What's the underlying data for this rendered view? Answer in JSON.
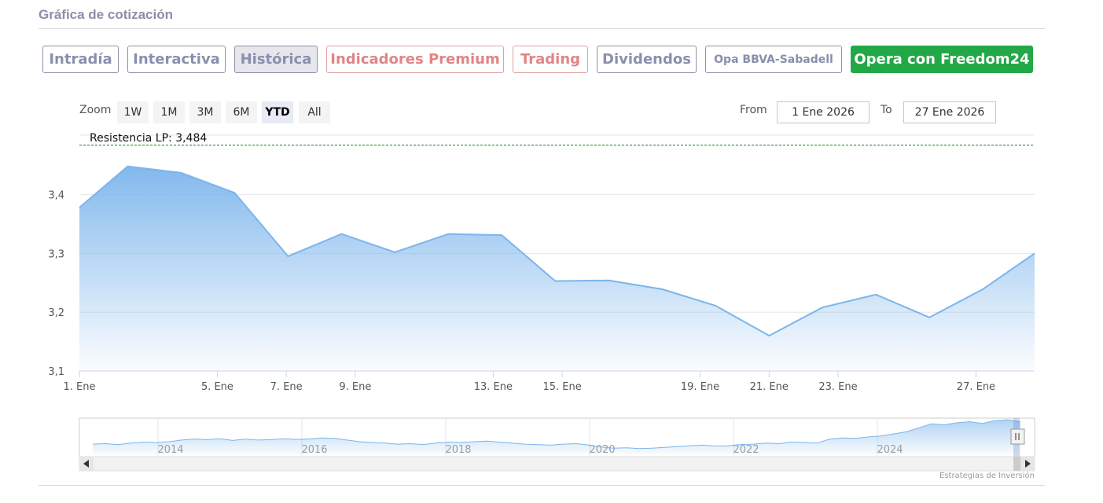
{
  "header": {
    "title": "Gráfica de cotización"
  },
  "tabs": [
    {
      "label": "Intradía",
      "style": "normal"
    },
    {
      "label": "Interactiva",
      "style": "normal"
    },
    {
      "label": "Histórica",
      "style": "active"
    },
    {
      "label": "Indicadores Premium",
      "style": "red"
    },
    {
      "label": "Trading",
      "style": "red"
    },
    {
      "label": "Dividendos",
      "style": "normal"
    },
    {
      "label": "Opa BBVA-Sabadell",
      "style": "small"
    },
    {
      "label": "Opera con Freedom24",
      "style": "green"
    }
  ],
  "zoom": {
    "label": "Zoom",
    "buttons": [
      "1W",
      "1M",
      "3M",
      "6M",
      "YTD",
      "All"
    ],
    "selected": "YTD"
  },
  "range": {
    "from_label": "From",
    "from_value": "1 Ene 2026",
    "to_label": "To",
    "to_value": "27 Ene 2026"
  },
  "credit": "Estrategias de Inversión",
  "colors": {
    "series_line": "#7cb5ec",
    "resistance_line": "#1a7a1a",
    "accent_green": "#22a846",
    "tab_text": "#8a8fae",
    "tab_red": "#e08585"
  },
  "chart_data": {
    "type": "area",
    "ylim": [
      3.1,
      3.5
    ],
    "yticks": [
      "3,1",
      "3,2",
      "3,3",
      "3,4"
    ],
    "ytick_values": [
      3.1,
      3.2,
      3.3,
      3.4
    ],
    "xlim": [
      0,
      27.7
    ],
    "xticks": [
      {
        "label": "1. Ene",
        "day": 0
      },
      {
        "label": "5. Ene",
        "day": 4
      },
      {
        "label": "7. Ene",
        "day": 6
      },
      {
        "label": "9. Ene",
        "day": 8
      },
      {
        "label": "13. Ene",
        "day": 12
      },
      {
        "label": "15. Ene",
        "day": 14
      },
      {
        "label": "19. Ene",
        "day": 18
      },
      {
        "label": "21. Ene",
        "day": 20
      },
      {
        "label": "23. Ene",
        "day": 22
      },
      {
        "label": "27. Ene",
        "day": 26
      }
    ],
    "series": [
      {
        "points": [
          [
            0,
            3.378
          ],
          [
            1.4,
            3.448
          ],
          [
            2.95,
            3.437
          ],
          [
            4.5,
            3.403
          ],
          [
            6.05,
            3.295
          ],
          [
            7.6,
            3.333
          ],
          [
            9.15,
            3.302
          ],
          [
            10.7,
            3.333
          ],
          [
            12.25,
            3.331
          ],
          [
            13.8,
            3.253
          ],
          [
            15.35,
            3.254
          ],
          [
            16.9,
            3.239
          ],
          [
            18.45,
            3.211
          ],
          [
            20.0,
            3.16
          ],
          [
            21.55,
            3.208
          ],
          [
            23.1,
            3.23
          ],
          [
            24.65,
            3.191
          ],
          [
            26.2,
            3.239
          ],
          [
            27.7,
            3.3
          ]
        ]
      }
    ],
    "resistance": {
      "label": "Resistencia LP: 3,484",
      "value": 3.484
    },
    "navigator": {
      "xticks": [
        "2014",
        "2016",
        "2018",
        "2020",
        "2022",
        "2024"
      ],
      "values": [
        0.5,
        0.52,
        0.47,
        0.55,
        0.6,
        0.58,
        0.62,
        0.7,
        0.75,
        0.72,
        0.77,
        0.68,
        0.74,
        0.7,
        0.72,
        0.76,
        0.73,
        0.75,
        0.8,
        0.78,
        0.7,
        0.62,
        0.58,
        0.55,
        0.5,
        0.52,
        0.48,
        0.55,
        0.6,
        0.58,
        0.62,
        0.65,
        0.6,
        0.55,
        0.5,
        0.48,
        0.45,
        0.5,
        0.52,
        0.46,
        0.35,
        0.3,
        0.32,
        0.28,
        0.3,
        0.34,
        0.38,
        0.42,
        0.45,
        0.4,
        0.42,
        0.48,
        0.5,
        0.55,
        0.52,
        0.6,
        0.58,
        0.55,
        0.75,
        0.8,
        0.78,
        0.85,
        0.9,
        1.0,
        1.1,
        1.3,
        1.5,
        1.45,
        1.55,
        1.6,
        1.52,
        1.65,
        1.7,
        1.6
      ]
    }
  }
}
